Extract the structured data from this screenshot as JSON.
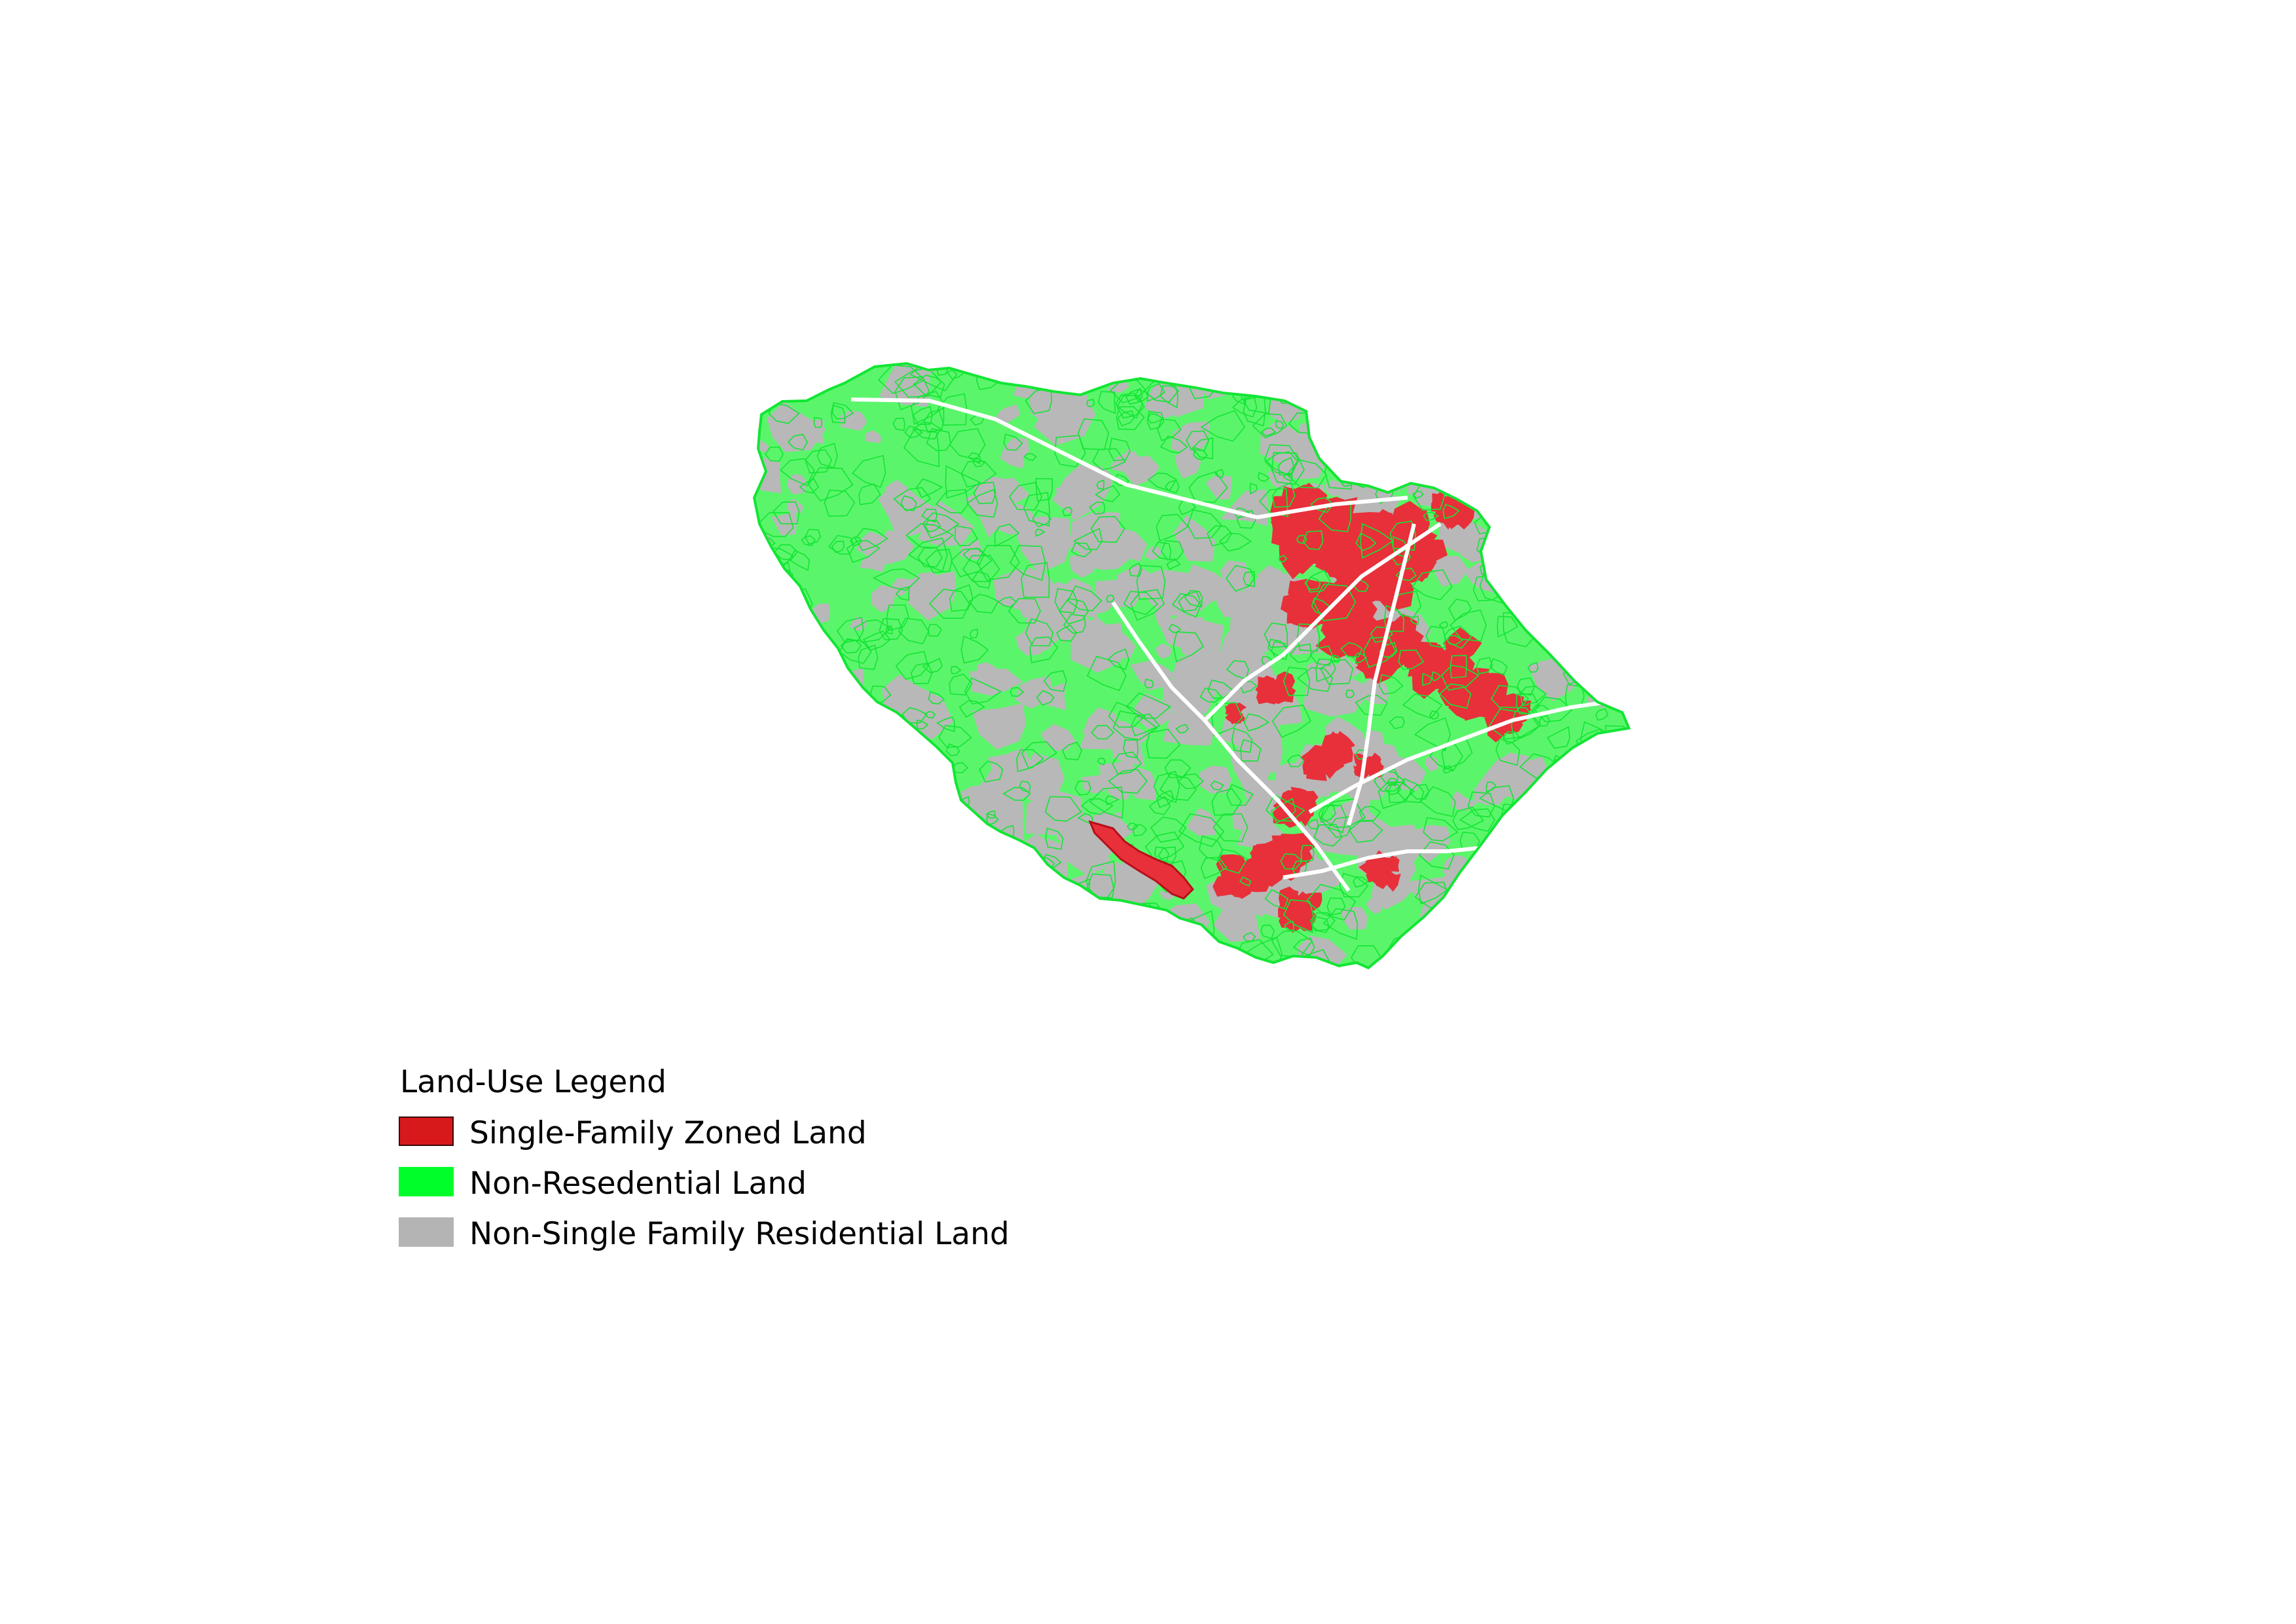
{
  "colors": {
    "single_family": "#d7191c",
    "single_family_fill": "#e8303a",
    "single_family_edge": "#b5101a",
    "non_residential": "#00ff2a",
    "non_residential_fill": "#5bf56b",
    "non_residential_edge": "#12e634",
    "non_single_family_residential": "#b4b4b4",
    "non_single_family_residential_fill": "#b8b8b8",
    "background": "#ffffff"
  },
  "map": {
    "legend": {
      "title": "Land-Use Legend",
      "items": [
        {
          "key": "single_family",
          "label": "Single-Family Zoned Land",
          "color": "#d7191c"
        },
        {
          "key": "non_residential",
          "label": "Non-Resedential Land",
          "color": "#00ff2a"
        },
        {
          "key": "non_single_family_residential",
          "label": "Non-Single Family Residential Land",
          "color": "#b4b4b4"
        }
      ]
    }
  }
}
